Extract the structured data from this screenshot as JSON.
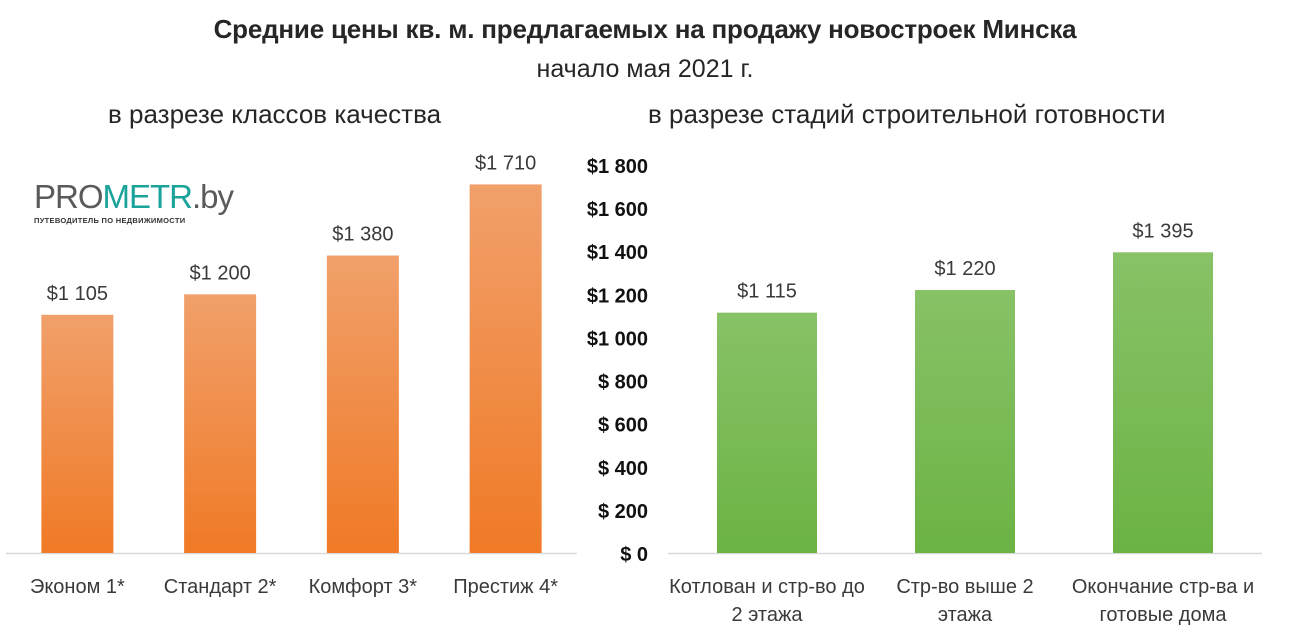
{
  "title": "Средние цены кв. м. предлагаемых на продажу новостроек Минска",
  "subtitle": "начало мая 2021 г.",
  "logo": {
    "text_pro": "PRO",
    "text_metr": "METR",
    "text_by": ".by",
    "tagline": "ПУТЕВОДИТЕЛЬ ПО НЕДВИЖИМОСТИ",
    "colors": {
      "pro": "#5a5a5a",
      "metr": "#1aa39a",
      "by": "#5a5a5a"
    }
  },
  "chart_data": [
    {
      "type": "bar",
      "title": "в разрезе классов качества",
      "categories": [
        "Эконом 1*",
        "Стандарт 2*",
        "Комфорт 3*",
        "Престиж 4*"
      ],
      "values": [
        1105,
        1200,
        1380,
        1710
      ],
      "value_labels": [
        "$1 105",
        "$1 200",
        "$1 380",
        "$1 710"
      ],
      "ylim": [
        0,
        1800
      ],
      "grid": false,
      "color": "#f07a26",
      "color_top": "#f1a06b"
    },
    {
      "type": "bar",
      "title": "в разрезе стадий строительной готовности",
      "categories": [
        [
          "Котлован и стр-во до",
          "2 этажа"
        ],
        [
          "Стр-во выше 2",
          "этажа"
        ],
        [
          "Окончание стр-ва и",
          "готовые дома"
        ]
      ],
      "values": [
        1115,
        1220,
        1395
      ],
      "value_labels": [
        "$1 115",
        "$1 220",
        "$1 395"
      ],
      "yticks": [
        0,
        200,
        400,
        600,
        800,
        1000,
        1200,
        1400,
        1600,
        1800
      ],
      "ytick_labels": [
        "$ 0",
        "$ 200",
        "$ 400",
        "$ 600",
        "$ 800",
        "$1 000",
        "$1 200",
        "$1 400",
        "$1 600",
        "$1 800"
      ],
      "ylim": [
        0,
        1800
      ],
      "grid": false,
      "color": "#6bb344",
      "color_top": "#88c267"
    }
  ]
}
